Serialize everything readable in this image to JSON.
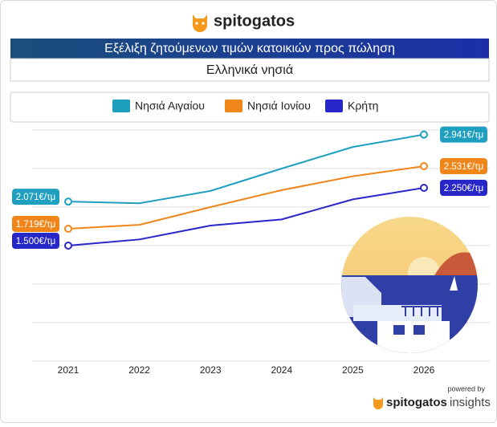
{
  "header": {
    "logo": "spitogatos"
  },
  "chart_data": {
    "type": "line",
    "title": "Εξέλιξη ζητούμενων τιμών κατοικιών προς πώληση",
    "subtitle": "Ελληνικά νησιά",
    "categories": [
      "2021",
      "2022",
      "2023",
      "2024",
      "2025",
      "2026"
    ],
    "ylim": [
      0,
      3000
    ],
    "grid": [
      0,
      500,
      1000,
      1500,
      2000,
      2500,
      3000
    ],
    "series": [
      {
        "name": "Νησιά Αιγαίου",
        "color": "#1f9fc0",
        "values": [
          2071,
          2050,
          2210,
          2500,
          2780,
          2941
        ],
        "value_labels": [
          "2.071€/τμ",
          null,
          null,
          null,
          null,
          "2.941€/τμ"
        ]
      },
      {
        "name": "Νησιά Ιονίου",
        "color": "#f0861a",
        "values": [
          1719,
          1770,
          2000,
          2220,
          2400,
          2531
        ],
        "value_labels": [
          "1.719€/τμ",
          null,
          null,
          null,
          null,
          "2.531€/τμ"
        ]
      },
      {
        "name": "Κρήτη",
        "color": "#2626c9",
        "values": [
          1500,
          1580,
          1760,
          1840,
          2100,
          2250
        ],
        "value_labels": [
          "1.500€/τμ",
          null,
          null,
          null,
          null,
          "2.250€/τμ"
        ]
      }
    ]
  },
  "footer": {
    "powered_by": "powered by",
    "brand": "spitogatos",
    "suffix": "insights"
  }
}
